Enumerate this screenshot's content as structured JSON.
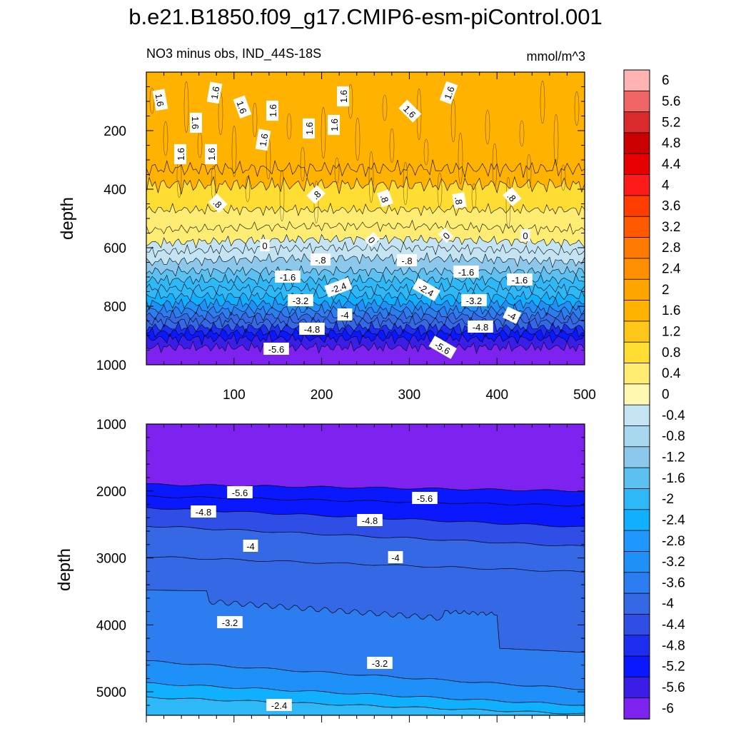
{
  "chart_data": {
    "type": "heatmap",
    "title": "b.e21.B1850.f09_g17.CMIP6-esm-piControl.001",
    "subtitle_left": "NO3 minus obs, IND_44S-18S",
    "subtitle_right": "mmol/m^3",
    "x_range": [
      0,
      500
    ],
    "x_tick_labels": [
      "100",
      "200",
      "300",
      "400",
      "500"
    ],
    "colorbar": {
      "labels": [
        "6",
        "5.6",
        "5.2",
        "4.8",
        "4.4",
        "4",
        "3.6",
        "3.2",
        "2.8",
        "2.4",
        "2",
        "1.6",
        "1.2",
        "0.8",
        "0.4",
        "0",
        "-0.4",
        "-0.8",
        "-1.2",
        "-1.6",
        "-2",
        "-2.4",
        "-2.8",
        "-3.2",
        "-3.6",
        "-4",
        "-4.4",
        "-4.8",
        "-5.2",
        "-5.6",
        "-6"
      ],
      "colors": [
        "#ffb3b3",
        "#f06666",
        "#d92b2b",
        "#cc0000",
        "#e60000",
        "#ff1a1a",
        "#ff3d00",
        "#ff5a00",
        "#ff7a00",
        "#ff8f00",
        "#ffa500",
        "#ffb300",
        "#ffc61a",
        "#ffdd33",
        "#ffec73",
        "#fff8b0",
        "#c4e4f4",
        "#a8d8f0",
        "#8cc8ec",
        "#5cc0f0",
        "#2eb8f8",
        "#10b0ff",
        "#1e98ff",
        "#1e90f8",
        "#2c7ef0",
        "#3468e4",
        "#2f4ee6",
        "#1e2ef0",
        "#0a18ff",
        "#3a1ee8",
        "#7d22ef"
      ]
    },
    "panels": [
      {
        "name": "upper",
        "ylabel": "depth",
        "y_range": [
          0,
          1000
        ],
        "y_tick_labels": [
          "200",
          "400",
          "600",
          "800",
          "1000"
        ],
        "contour_labels": [
          "1.6",
          "1.6",
          "1.6",
          "1.6",
          "1.6",
          "1.6",
          "1.6",
          "1.6",
          "1.6",
          "1.6",
          "1.6",
          "1.6",
          "1.6",
          ".8",
          ".8",
          ".8",
          ".8",
          ".8",
          "0",
          "0",
          "0",
          "0",
          "-.8",
          "-.8",
          "-1.6",
          "-1.6",
          "-1.6",
          "-2.4",
          "-2.4",
          "-3.2",
          "-3.2",
          "-4",
          "-4",
          "-4.8",
          "-4.8",
          "-5.6",
          "-5.6"
        ]
      },
      {
        "name": "lower",
        "ylabel": "depth",
        "y_range": [
          1000,
          5350
        ],
        "y_tick_labels": [
          "1000",
          "2000",
          "3000",
          "4000",
          "5000"
        ],
        "contour_labels": [
          "-5.6",
          "-5.6",
          "-4.8",
          "-4.8",
          "-4",
          "-4",
          "-3.2",
          "-3.2",
          "-2.4"
        ]
      }
    ]
  }
}
